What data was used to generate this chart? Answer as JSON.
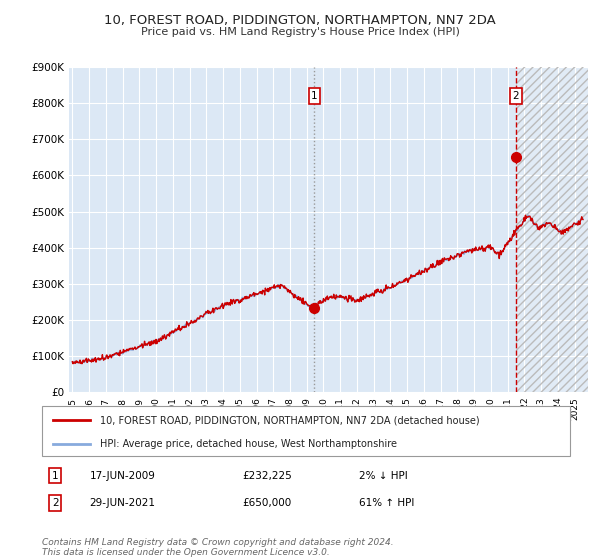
{
  "title": "10, FOREST ROAD, PIDDINGTON, NORTHAMPTON, NN7 2DA",
  "subtitle": "Price paid vs. HM Land Registry's House Price Index (HPI)",
  "title_fontsize": 9.5,
  "subtitle_fontsize": 8,
  "background_color": "#ffffff",
  "plot_bg_color": "#dce8f5",
  "grid_color": "#ffffff",
  "hpi_line_color": "#88aadd",
  "property_line_color": "#cc0000",
  "point1_x": 2009.46,
  "point1_y": 232225,
  "point2_x": 2021.49,
  "point2_y": 650000,
  "point1_label": "1",
  "point2_label": "2",
  "vline1_color": "#999999",
  "vline2_color": "#cc0000",
  "ylim": [
    0,
    900000
  ],
  "xlim": [
    1994.8,
    2025.8
  ],
  "legend_line1": "10, FOREST ROAD, PIDDINGTON, NORTHAMPTON, NN7 2DA (detached house)",
  "legend_line2": "HPI: Average price, detached house, West Northamptonshire",
  "table_row1_label": "1",
  "table_row1_date": "17-JUN-2009",
  "table_row1_price": "£232,225",
  "table_row1_hpi": "2% ↓ HPI",
  "table_row2_label": "2",
  "table_row2_date": "29-JUN-2021",
  "table_row2_price": "£650,000",
  "table_row2_hpi": "61% ↑ HPI",
  "footer": "Contains HM Land Registry data © Crown copyright and database right 2024.\nThis data is licensed under the Open Government Licence v3.0.",
  "footer_fontsize": 6.5
}
